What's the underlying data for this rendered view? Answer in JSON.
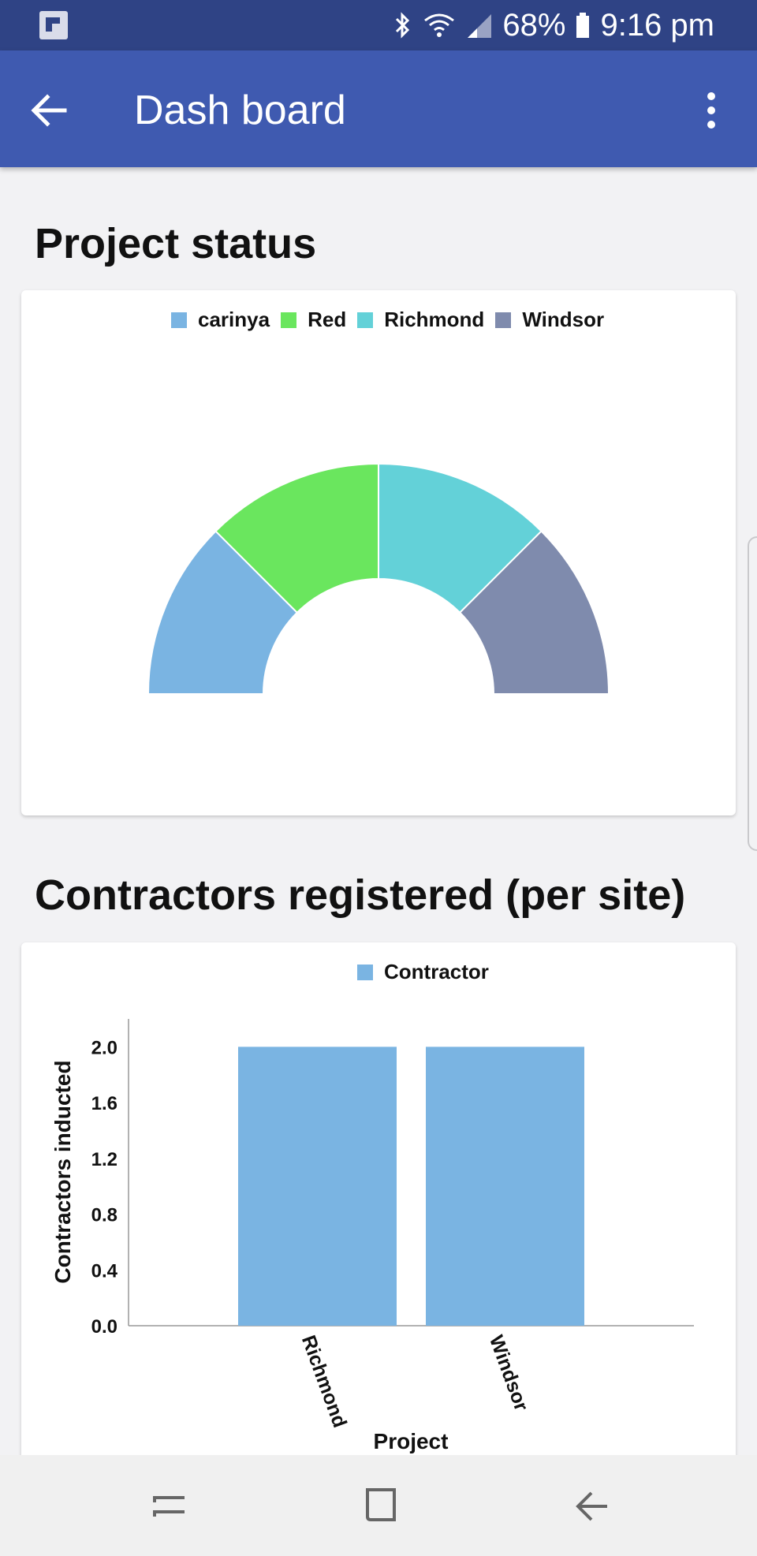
{
  "status_bar": {
    "battery": "68%",
    "time": "9:16 pm",
    "icons": [
      "app-logo-icon",
      "bluetooth-icon",
      "wifi-icon",
      "signal-icon",
      "battery-icon"
    ]
  },
  "app_bar": {
    "title": "Dash board",
    "back_icon": "arrow-left-icon",
    "menu_icon": "more-vert-icon"
  },
  "sections": {
    "project_status_title": "Project status",
    "contractors_title": "Contractors registered (per site)"
  },
  "chart_data": [
    {
      "type": "pie",
      "variant": "half-doughnut",
      "legend_position": "top",
      "labels": [
        "carinya",
        "Red",
        "Richmond",
        "Windsor"
      ],
      "values": [
        1,
        1,
        1,
        1
      ],
      "colors": [
        "#7ab4e2",
        "#6ae65e",
        "#63d1d8",
        "#7f8bad"
      ]
    },
    {
      "type": "bar",
      "legend_position": "top",
      "categories": [
        "Richmond",
        "Windsor"
      ],
      "series": [
        {
          "name": "Contractor",
          "values": [
            2.0,
            2.0
          ],
          "color": "#7ab4e2"
        }
      ],
      "xlabel": "Project",
      "ylabel": "Contractors inducted",
      "ylim": [
        0,
        2.2
      ],
      "yticks": [
        "0.0",
        "0.4",
        "0.8",
        "1.2",
        "1.6",
        "2.0"
      ],
      "grid": false
    }
  ],
  "nav_bar": {
    "icons": [
      "recents-icon",
      "home-icon",
      "back-icon"
    ]
  }
}
